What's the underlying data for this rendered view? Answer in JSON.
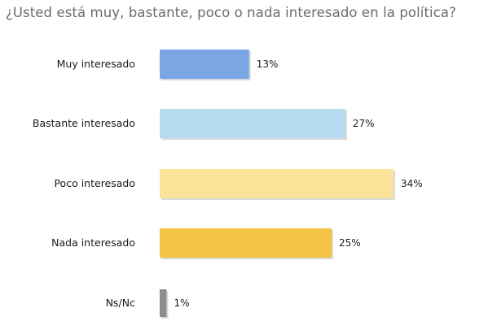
{
  "chart_data": {
    "type": "bar",
    "orientation": "horizontal",
    "title": "¿Usted está muy, bastante, poco o nada interesado en la política?",
    "categories": [
      "Muy interesado",
      "Bastante interesado",
      "Poco interesado",
      "Nada interesado",
      "Ns/Nc"
    ],
    "values": [
      13,
      27,
      34,
      25,
      1
    ],
    "value_labels": [
      "13%",
      "27%",
      "34%",
      "25%",
      "1%"
    ],
    "colors": [
      "#7aa6e4",
      "#b6daf0",
      "#fbe49a",
      "#f5c343",
      "#8c8c8c"
    ],
    "xlim": [
      0,
      34
    ],
    "grid": false,
    "legend": "none"
  }
}
